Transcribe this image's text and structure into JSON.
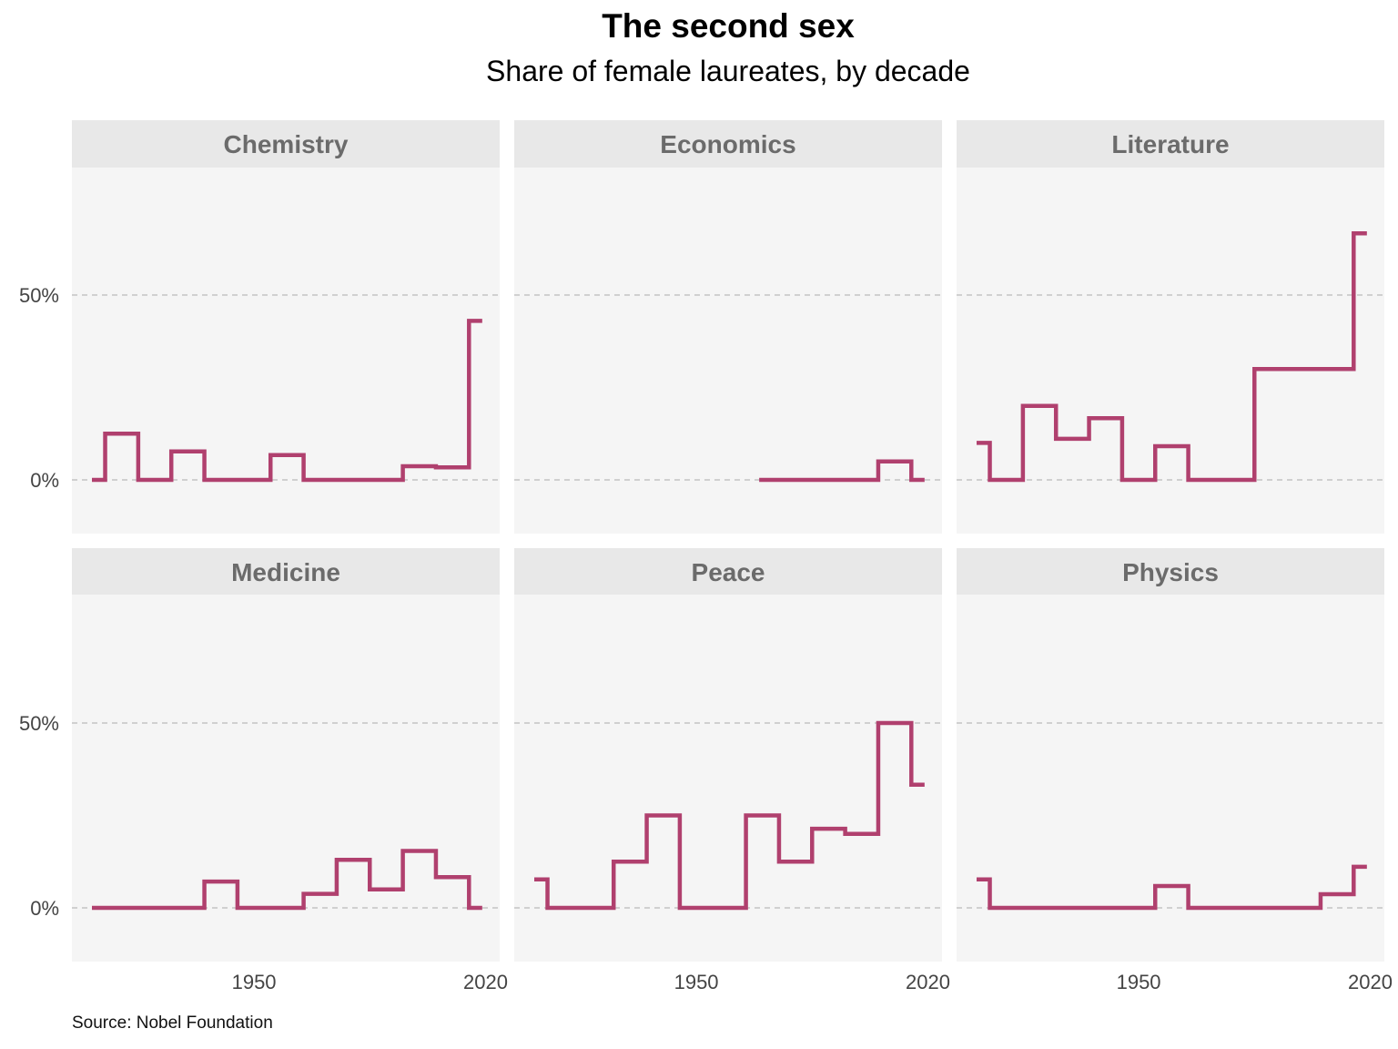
{
  "title": "The second sex",
  "subtitle": "Share of female laureates, by decade",
  "caption": "Source: Nobel Foundation",
  "colors": {
    "line": "#b0406e",
    "panel": "#f5f5f5",
    "strip": "#e8e8e8",
    "grid": "#bbbbbb"
  },
  "chart_data": {
    "type": "line",
    "step": true,
    "xlabel": "",
    "ylabel": "",
    "xlim": [
      1901,
      2024
    ],
    "ylim": [
      -0.15,
      0.85
    ],
    "x_ticks": [
      1950,
      2020
    ],
    "x_tick_labels": [
      "1950",
      "2020"
    ],
    "y_ticks": [
      0,
      0.5
    ],
    "y_tick_labels": [
      "0%",
      "50%"
    ],
    "grid": "horizontal dashed",
    "panels": [
      {
        "name": "Chemistry",
        "x": [
          1901,
          1905,
          1915,
          1925,
          1935,
          1955,
          1965,
          1995,
          2005,
          2015,
          2019
        ],
        "y": [
          0,
          0.125,
          0,
          0.077,
          0,
          0.067,
          0,
          0.037,
          0.034,
          0.43,
          0.43
        ]
      },
      {
        "name": "Economics",
        "x": [
          1969,
          1975,
          2005,
          2015,
          2019
        ],
        "y": [
          0,
          0,
          0.05,
          0,
          0
        ]
      },
      {
        "name": "Literature",
        "x": [
          1901,
          1905,
          1915,
          1925,
          1935,
          1945,
          1955,
          1965,
          1985,
          2015,
          2019
        ],
        "y": [
          0.1,
          0,
          0.2,
          0.111,
          0.167,
          0,
          0.091,
          0,
          0.3,
          0.667,
          0.667
        ]
      },
      {
        "name": "Medicine",
        "x": [
          1901,
          1935,
          1945,
          1965,
          1975,
          1985,
          1995,
          2005,
          2015,
          2019
        ],
        "y": [
          0,
          0.071,
          0,
          0.038,
          0.13,
          0.05,
          0.154,
          0.083,
          0,
          0
        ]
      },
      {
        "name": "Peace",
        "x": [
          1901,
          1905,
          1925,
          1935,
          1945,
          1965,
          1975,
          1985,
          1995,
          2005,
          2015,
          2019
        ],
        "y": [
          0.077,
          0,
          0.125,
          0.25,
          0,
          0.25,
          0.125,
          0.214,
          0.2,
          0.5,
          0.333,
          0.333
        ]
      },
      {
        "name": "Physics",
        "x": [
          1901,
          1905,
          1955,
          1965,
          2005,
          2015,
          2019
        ],
        "y": [
          0.077,
          0,
          0.059,
          0,
          0.037,
          0.111,
          0.111
        ]
      }
    ]
  }
}
